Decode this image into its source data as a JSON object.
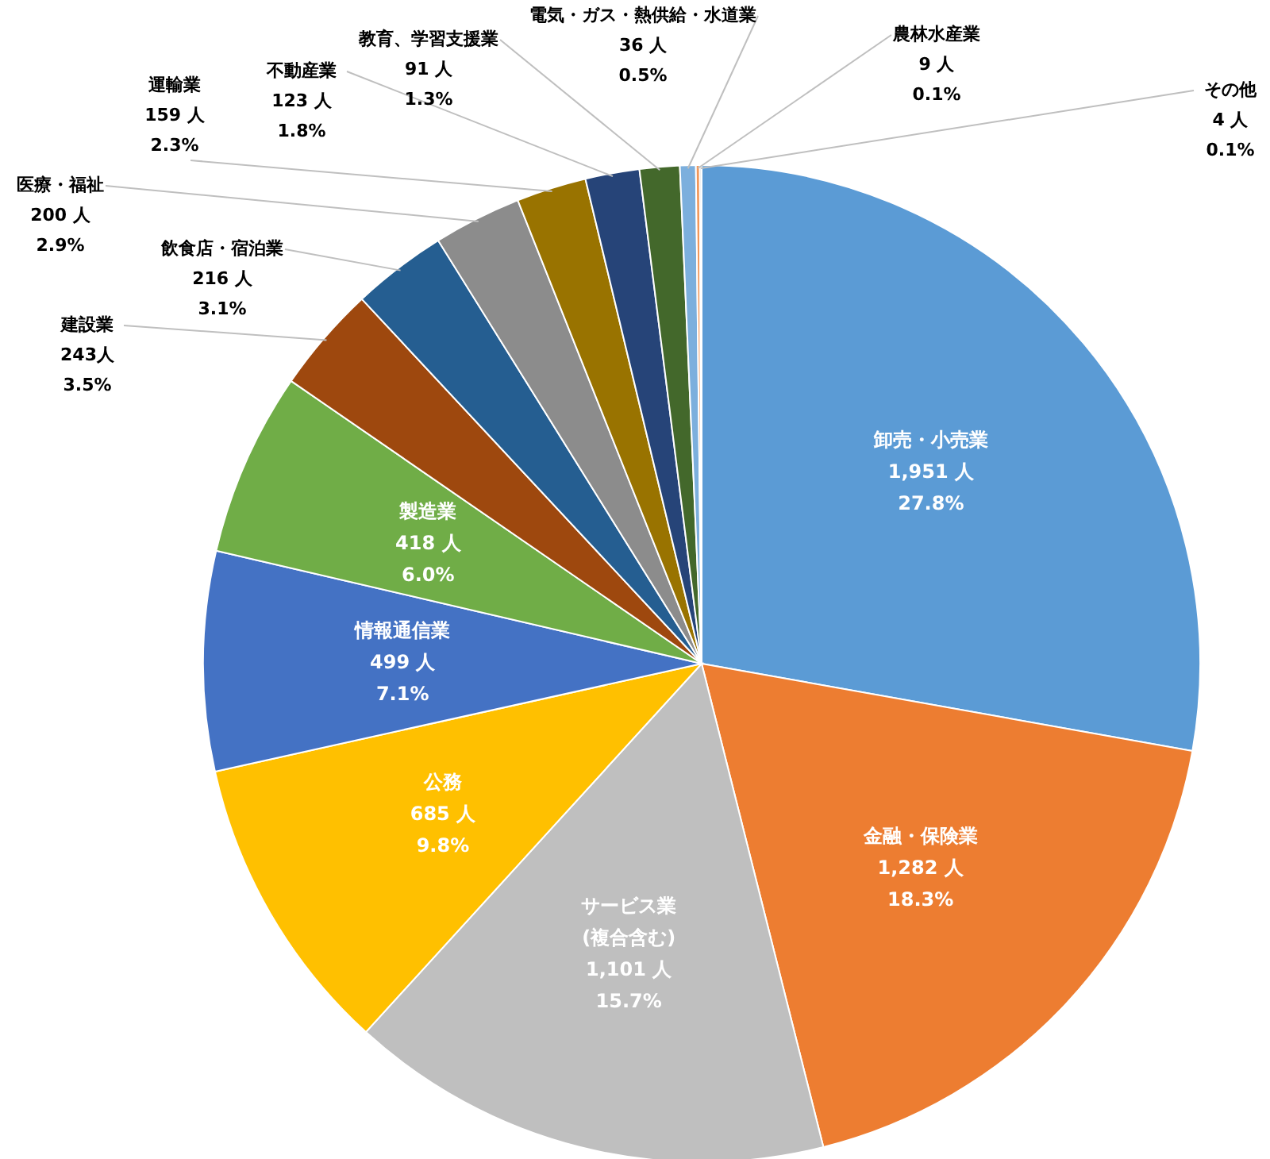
{
  "chart_data": {
    "type": "pie",
    "categories": [
      "卸売・小売業",
      "金融・保険業",
      "サービス業\n(複合含む)",
      "公務",
      "情報通信業",
      "製造業",
      "建設業",
      "飲食店・宿泊業",
      "医療・福祉",
      "運輸業",
      "不動産業",
      "教育、学習支援業",
      "電気・ガス・熱供給・水道業",
      "農林水産業",
      "その他"
    ],
    "values": [
      1951,
      1282,
      1101,
      685,
      499,
      418,
      243,
      216,
      200,
      159,
      123,
      91,
      36,
      9,
      4
    ],
    "value_labels": [
      "1,951 人\n27.8%",
      "1,282 人\n18.3%",
      "1,101 人\n15.7%",
      "685 人\n9.8%",
      "499 人\n7.1%",
      "418 人\n6.0%",
      "243人\n3.5%",
      "216 人\n3.1%",
      "200 人\n2.9%",
      "159 人\n2.3%",
      "123 人\n1.8%",
      "91 人\n1.3%",
      "36 人\n0.5%",
      "9 人\n0.1%",
      "4 人\n0.1%"
    ],
    "colors": [
      "#5b9bd5",
      "#ed7d31",
      "#bfbfbf",
      "#ffc000",
      "#4472c4",
      "#70ad47",
      "#9e480e",
      "#255e91",
      "#8c8c8c",
      "#997300",
      "#264478",
      "#43682b",
      "#7cafdd",
      "#f1975a",
      "#b7b7b7"
    ]
  }
}
